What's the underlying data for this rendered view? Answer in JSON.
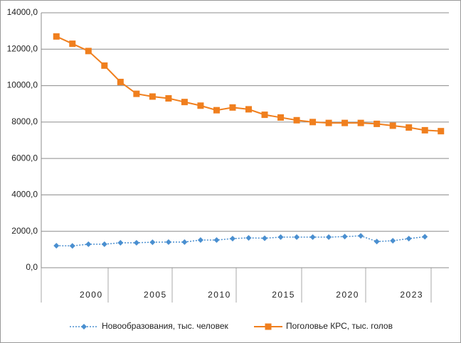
{
  "chart_data": {
    "type": "line",
    "categories": [
      null,
      null,
      "2000",
      null,
      null,
      null,
      "2005",
      null,
      null,
      null,
      "2010",
      null,
      null,
      null,
      "2015",
      null,
      null,
      null,
      "2020",
      null,
      null,
      null,
      "2023",
      null,
      null
    ],
    "series": [
      {
        "name": "Новообразования, тыс. человек",
        "color": "#4a8fd0",
        "marker": "diamond",
        "dash": "dotted",
        "values": [
          1210,
          1200,
          1290,
          1290,
          1370,
          1370,
          1400,
          1410,
          1410,
          1520,
          1520,
          1600,
          1640,
          1620,
          1680,
          1680,
          1680,
          1680,
          1710,
          1750,
          1440,
          1480,
          1600,
          1700,
          null
        ]
      },
      {
        "name": "Поголовье КРС, тыс. голов",
        "color": "#f07f1e",
        "marker": "square",
        "dash": "solid",
        "values": [
          12700,
          12300,
          11900,
          11100,
          10200,
          9550,
          9400,
          9300,
          9100,
          8900,
          8650,
          8800,
          8700,
          8400,
          8250,
          8100,
          8000,
          7950,
          7950,
          7950,
          7900,
          7800,
          7700,
          7550,
          7500
        ]
      }
    ],
    "ylim": [
      0,
      14000
    ],
    "yticks": [
      {
        "value": 0,
        "label": "0,0"
      },
      {
        "value": 2000,
        "label": "2000,0"
      },
      {
        "value": 4000,
        "label": "4000,0"
      },
      {
        "value": 6000,
        "label": "6000,0"
      },
      {
        "value": 8000,
        "label": "8000,0"
      },
      {
        "value": 10000,
        "label": "10000,0"
      },
      {
        "value": 12000,
        "label": "12000,0"
      },
      {
        "value": 14000,
        "label": "14000,0"
      }
    ],
    "grid": true,
    "legend": "bottom"
  }
}
